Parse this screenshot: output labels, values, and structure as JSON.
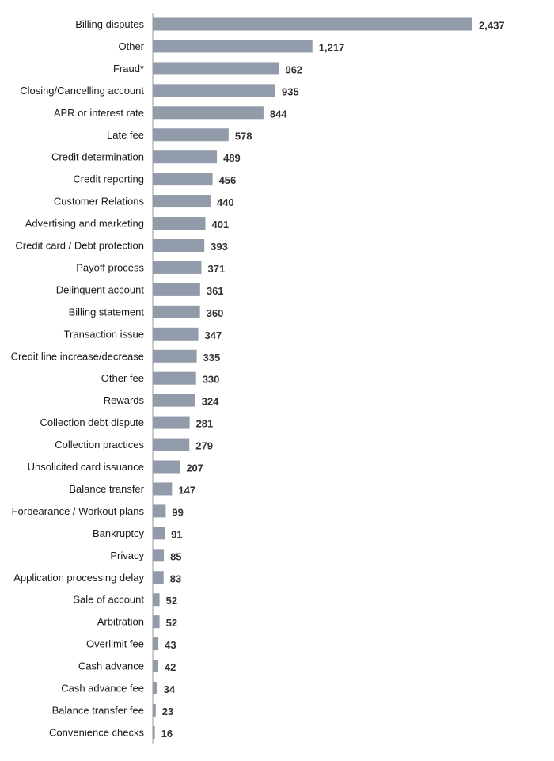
{
  "chart_data": {
    "type": "bar",
    "orientation": "horizontal",
    "categories": [
      "Billing disputes",
      "Other",
      "Fraud*",
      "Closing/Cancelling account",
      "APR or interest rate",
      "Late fee",
      "Credit determination",
      "Credit reporting",
      "Customer Relations",
      "Advertising and marketing",
      "Credit card / Debt protection",
      "Payoff process",
      "Delinquent account",
      "Billing statement",
      "Transaction issue",
      "Credit line increase/decrease",
      "Other fee",
      "Rewards",
      "Collection debt dispute",
      "Collection practices",
      "Unsolicited card issuance",
      "Balance transfer",
      "Forbearance / Workout plans",
      "Bankruptcy",
      "Privacy",
      "Application processing delay",
      "Sale of account",
      "Arbitration",
      "Overlimit fee",
      "Cash advance",
      "Cash advance fee",
      "Balance transfer fee",
      "Convenience checks"
    ],
    "values": [
      2437,
      1217,
      962,
      935,
      844,
      578,
      489,
      456,
      440,
      401,
      393,
      371,
      361,
      360,
      347,
      335,
      330,
      324,
      281,
      279,
      207,
      147,
      99,
      91,
      85,
      83,
      52,
      52,
      43,
      42,
      34,
      23,
      16
    ],
    "value_labels": [
      "2,437",
      "1,217",
      "962",
      "935",
      "844",
      "578",
      "489",
      "456",
      "440",
      "401",
      "393",
      "371",
      "361",
      "360",
      "347",
      "335",
      "330",
      "324",
      "281",
      "279",
      "207",
      "147",
      "99",
      "91",
      "85",
      "83",
      "52",
      "52",
      "43",
      "42",
      "34",
      "23",
      "16"
    ],
    "xlim": [
      0,
      2437
    ],
    "grid": false,
    "legend": "none",
    "colors": {
      "bar": "#929ba9",
      "axis": "#9a9a9a",
      "label": "#1a1a1a",
      "value": "#333333"
    }
  }
}
